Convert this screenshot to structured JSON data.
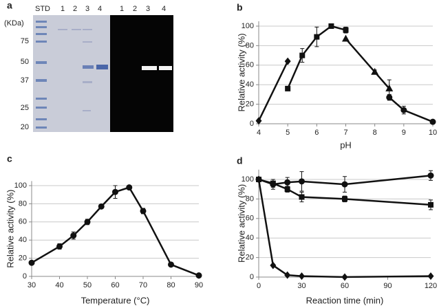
{
  "gel": {
    "label": "a",
    "unit_label": "(KDa)",
    "lanes": [
      "STD",
      "1",
      "2",
      "3",
      "4",
      "1",
      "2",
      "3",
      "4"
    ],
    "markers": [
      75,
      50,
      37,
      25,
      20
    ]
  },
  "chart_data": [
    {
      "type": "line",
      "label": "b",
      "x_label": "pH",
      "y_label": "Relative activity (%)",
      "xlim": [
        4,
        10
      ],
      "xticks": [
        4,
        5,
        6,
        7,
        8,
        9,
        10
      ],
      "ylim": [
        0,
        105
      ],
      "yticks": [
        0,
        20,
        40,
        60,
        80,
        100
      ],
      "grid": true,
      "color": "#111111",
      "series": [
        {
          "marker": "diamond",
          "x": [
            4,
            5
          ],
          "values": [
            3,
            64
          ],
          "errors": [
            null,
            null
          ]
        },
        {
          "marker": "square",
          "x": [
            5,
            5.5,
            6,
            6.5,
            7
          ],
          "values": [
            36,
            70,
            89,
            100,
            96
          ],
          "errors": [
            null,
            7,
            10,
            1,
            3
          ]
        },
        {
          "marker": "triangle",
          "x": [
            7,
            8,
            8.5
          ],
          "values": [
            87,
            53,
            36
          ],
          "errors": [
            null,
            2,
            9
          ]
        },
        {
          "marker": "circle",
          "x": [
            8.5,
            9,
            10
          ],
          "values": [
            27,
            14,
            2
          ],
          "errors": [
            3,
            4,
            null
          ]
        }
      ]
    },
    {
      "type": "line",
      "label": "c",
      "x_label": "Temperature (°C)",
      "y_label": "Relative activity (%)",
      "xlim": [
        30,
        90
      ],
      "xticks": [
        30,
        40,
        50,
        60,
        70,
        80,
        90
      ],
      "ylim": [
        0,
        105
      ],
      "yticks": [
        0,
        20,
        40,
        60,
        80,
        100
      ],
      "grid": true,
      "color": "#111111",
      "series": [
        {
          "marker": "circle",
          "x": [
            30,
            40,
            45,
            50,
            55,
            60,
            65,
            70,
            80,
            90
          ],
          "values": [
            15,
            33,
            45,
            60,
            77,
            93,
            98,
            72,
            13,
            1
          ],
          "errors": [
            null,
            3,
            4,
            3,
            2,
            7,
            2,
            3,
            null,
            null
          ]
        }
      ]
    },
    {
      "type": "line",
      "label": "d",
      "x_label": "Reaction time (min)",
      "y_label": "Relative activity (%)",
      "xlim": [
        0,
        120
      ],
      "xticks": [
        0,
        30,
        60,
        90,
        120
      ],
      "ylim": [
        0,
        110
      ],
      "yticks": [
        0,
        20,
        40,
        60,
        80,
        100
      ],
      "grid": true,
      "color": "#111111",
      "series": [
        {
          "marker": "circle",
          "x": [
            0,
            10,
            20,
            30,
            60,
            120
          ],
          "values": [
            100,
            95,
            97,
            98,
            95,
            104
          ],
          "errors": [
            null,
            5,
            5,
            10,
            8,
            5
          ]
        },
        {
          "marker": "square",
          "x": [
            0,
            10,
            20,
            30,
            60,
            120
          ],
          "values": [
            100,
            96,
            90,
            82,
            80,
            74
          ],
          "errors": [
            null,
            4,
            3,
            5,
            3,
            5
          ]
        },
        {
          "marker": "diamond",
          "x": [
            0,
            10,
            20,
            30,
            60,
            120
          ],
          "values": [
            100,
            12,
            2,
            1,
            0,
            1
          ],
          "errors": [
            null,
            null,
            null,
            null,
            null,
            null
          ]
        }
      ]
    }
  ]
}
